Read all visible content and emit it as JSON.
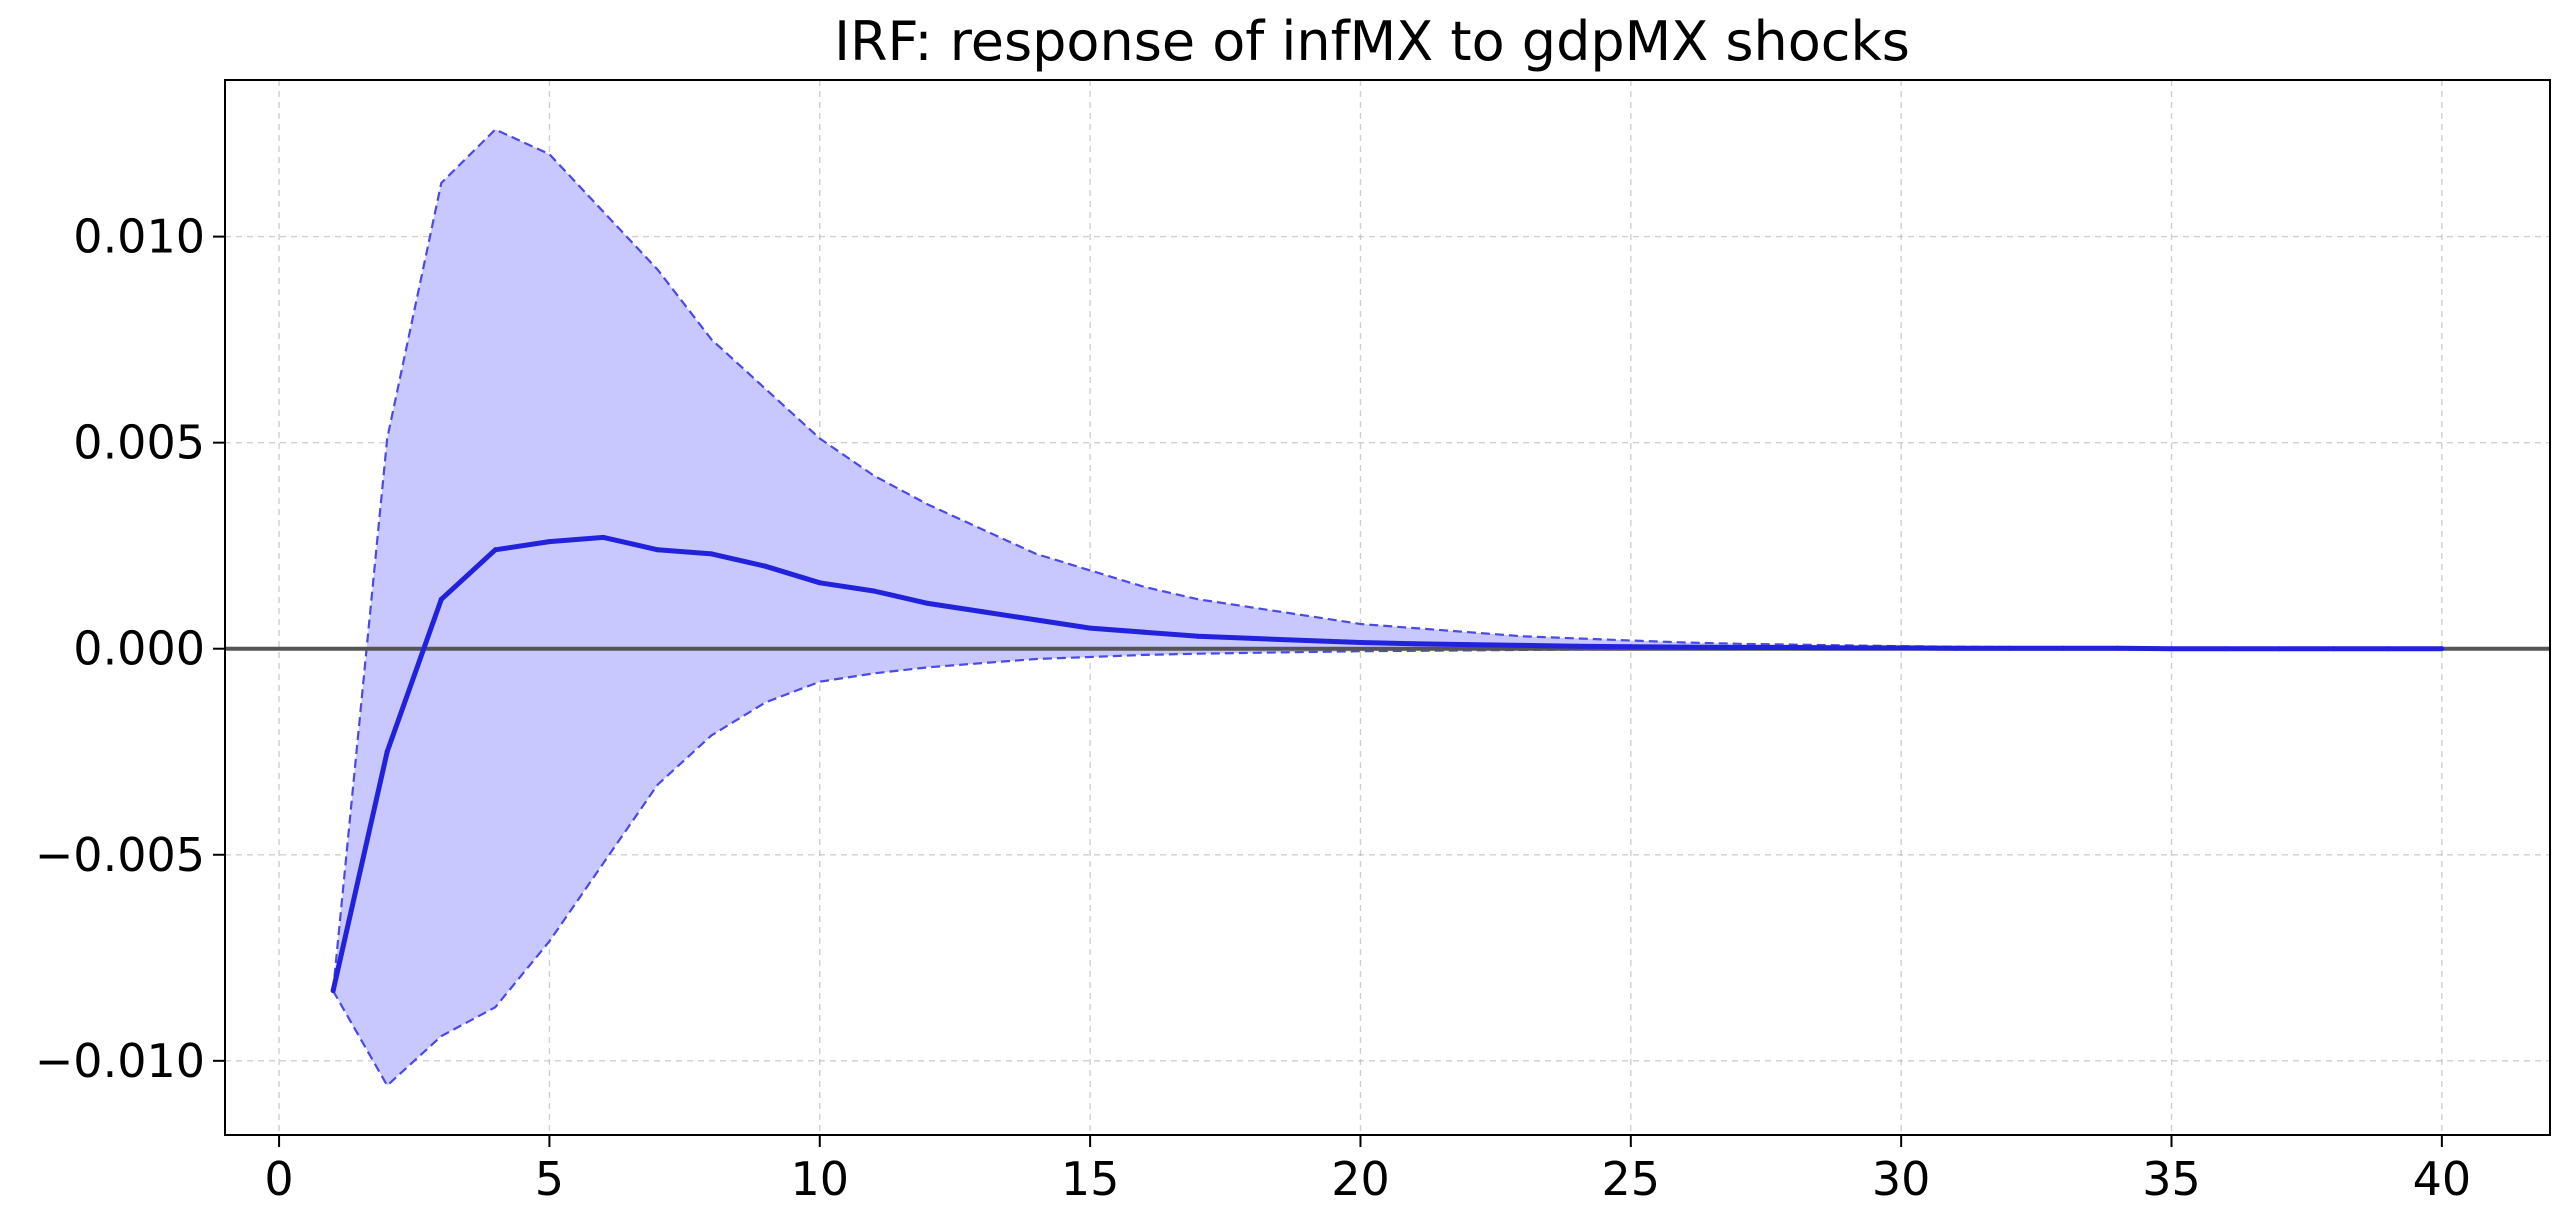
{
  "chart_data": {
    "type": "line",
    "title": "IRF: response of infMX to gdpMX shocks",
    "xlabel": "",
    "ylabel": "",
    "xlim": [
      -1,
      42
    ],
    "ylim": [
      -0.0118,
      0.0138
    ],
    "x_ticks": [
      0,
      5,
      10,
      15,
      20,
      25,
      30,
      35,
      40
    ],
    "x_tick_labels": [
      "0",
      "5",
      "10",
      "15",
      "20",
      "25",
      "30",
      "35",
      "40"
    ],
    "y_ticks": [
      -0.01,
      -0.005,
      0.0,
      0.005,
      0.01
    ],
    "y_tick_labels": [
      "−0.010",
      "−0.005",
      "0.000",
      "0.005",
      "0.010"
    ],
    "grid": true,
    "zero_line": 0,
    "x": [
      1,
      2,
      3,
      4,
      5,
      6,
      7,
      8,
      9,
      10,
      11,
      12,
      13,
      14,
      15,
      16,
      17,
      18,
      19,
      20,
      21,
      22,
      23,
      24,
      25,
      26,
      27,
      28,
      29,
      30,
      31,
      32,
      33,
      34,
      35,
      36,
      37,
      38,
      39,
      40
    ],
    "series": [
      {
        "role": "irf",
        "values": [
          -0.0083,
          -0.0025,
          0.0012,
          0.0024,
          0.0026,
          0.0027,
          0.0024,
          0.0023,
          0.002,
          0.0016,
          0.0014,
          0.0011,
          0.0009,
          0.0007,
          0.0005,
          0.0004,
          0.0003,
          0.00025,
          0.0002,
          0.00015,
          0.00012,
          0.0001,
          8e-05,
          6e-05,
          5e-05,
          4e-05,
          3e-05,
          3e-05,
          2e-05,
          2e-05,
          1e-05,
          1e-05,
          1e-05,
          1e-05,
          0,
          0,
          0,
          0,
          0,
          0
        ]
      },
      {
        "role": "upper",
        "values": [
          -0.0083,
          0.0051,
          0.0113,
          0.0126,
          0.012,
          0.0106,
          0.0092,
          0.0075,
          0.0063,
          0.0051,
          0.0042,
          0.0035,
          0.0029,
          0.0023,
          0.0019,
          0.0015,
          0.0012,
          0.001,
          0.0008,
          0.0006,
          0.0005,
          0.0004,
          0.0003,
          0.00025,
          0.0002,
          0.00015,
          0.00012,
          0.0001,
          8e-05,
          6e-05,
          5e-05,
          4e-05,
          3e-05,
          2e-05,
          2e-05,
          1e-05,
          1e-05,
          1e-05,
          0,
          0
        ]
      },
      {
        "role": "lower",
        "values": [
          -0.0083,
          -0.0106,
          -0.0094,
          -0.0087,
          -0.0071,
          -0.0052,
          -0.0033,
          -0.0021,
          -0.0013,
          -0.0008,
          -0.0006,
          -0.00045,
          -0.00035,
          -0.00025,
          -0.0002,
          -0.00015,
          -0.00012,
          -0.0001,
          -8e-05,
          -6e-05,
          -5e-05,
          -4e-05,
          -3e-05,
          -2e-05,
          -2e-05,
          -1e-05,
          -1e-05,
          -1e-05,
          0,
          0,
          0,
          0,
          0,
          0,
          0,
          0,
          0,
          0,
          0,
          0
        ]
      }
    ],
    "colors": {
      "irf": "#2222dd",
      "band_fill": "#c8c8ff",
      "band_edge": "#4a4ae8",
      "zero_line": "#555555"
    }
  }
}
